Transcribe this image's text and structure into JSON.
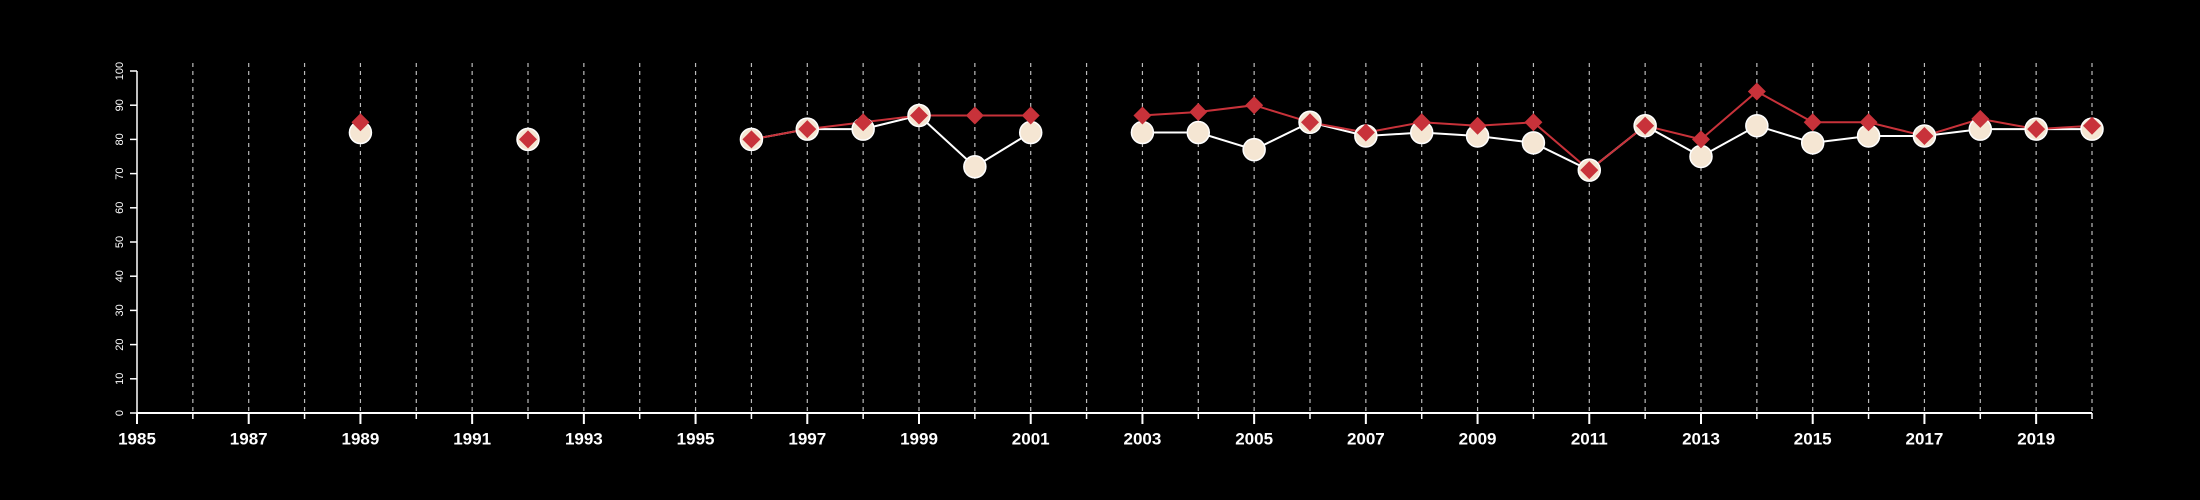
{
  "chart_data": {
    "type": "line",
    "title": "",
    "xlabel": "",
    "ylabel": "",
    "xlim": [
      1985,
      2020
    ],
    "ylim": [
      0,
      100
    ],
    "x_ticks": [
      1985,
      1987,
      1989,
      1991,
      1993,
      1995,
      1997,
      1999,
      2001,
      2003,
      2005,
      2007,
      2009,
      2011,
      2013,
      2015,
      2017,
      2019
    ],
    "x_tick_labels": [
      "1985",
      "1987",
      "1989",
      "1991",
      "1993",
      "1995",
      "1997",
      "1999",
      "2001",
      "2003",
      "2005",
      "2007",
      "2009",
      "2011",
      "2013",
      "2015",
      "2017",
      "2019"
    ],
    "y_ticks": [
      0,
      10,
      20,
      30,
      40,
      50,
      60,
      70,
      80,
      90,
      100
    ],
    "y_tick_labels": [
      "0",
      "10",
      "20",
      "30",
      "40",
      "50",
      "60",
      "70",
      "80",
      "90",
      "100"
    ],
    "grid": "vertical dashed lines at every year",
    "x": [
      1989,
      1992,
      1996,
      1997,
      1998,
      1999,
      2000,
      2001,
      2003,
      2004,
      2005,
      2006,
      2007,
      2008,
      2009,
      2010,
      2011,
      2012,
      2013,
      2014,
      2015,
      2016,
      2017,
      2018,
      2019,
      2020
    ],
    "series": [
      {
        "marker": "circle",
        "color": "#f5e6d3",
        "values": [
          82,
          80,
          80,
          83,
          83,
          87,
          72,
          82,
          82,
          82,
          77,
          85,
          81,
          82,
          81,
          79,
          71,
          84,
          75,
          84,
          79,
          81,
          81,
          83,
          83,
          83
        ]
      },
      {
        "marker": "diamond",
        "color": "#c8323a",
        "values": [
          85,
          80,
          80,
          83,
          85,
          87,
          87,
          87,
          87,
          88,
          90,
          85,
          82,
          85,
          84,
          85,
          71,
          84,
          80,
          94,
          85,
          85,
          81,
          86,
          83,
          84
        ]
      }
    ]
  }
}
